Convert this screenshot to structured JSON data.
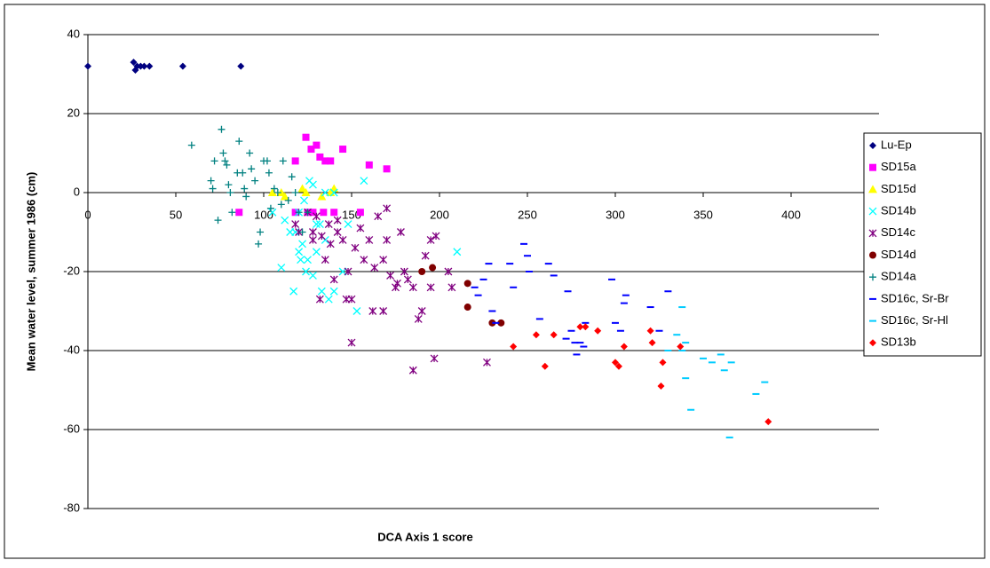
{
  "chart_data": {
    "type": "scatter",
    "xlabel": "DCA Axis 1 score",
    "ylabel": "Mean water level, summer 1986 (cm)",
    "xlim": [
      0,
      450
    ],
    "xticks": [
      0,
      50,
      100,
      150,
      200,
      250,
      300,
      350,
      400
    ],
    "ylim": [
      -80,
      40
    ],
    "yticks": [
      -80,
      -60,
      -40,
      -20,
      0,
      20,
      40
    ],
    "grid": true,
    "legend": "right",
    "series": [
      {
        "name": "Lu-Ep",
        "color": "#000080",
        "marker": "diamond",
        "x": [
          0,
          26,
          27,
          28,
          30,
          32,
          35,
          54,
          87
        ],
        "values": [
          32,
          33,
          31,
          32,
          32,
          32,
          32,
          32,
          32
        ]
      },
      {
        "name": "SD15a",
        "color": "#ff00ff",
        "marker": "square",
        "x": [
          86,
          118,
          118,
          124,
          127,
          125,
          130,
          132,
          134,
          135,
          138,
          145,
          140,
          155,
          160,
          170,
          128
        ],
        "values": [
          -5,
          8,
          -5,
          14,
          11,
          -5,
          12,
          9,
          -5,
          8,
          8,
          11,
          -5,
          -5,
          7,
          6,
          -5
        ]
      },
      {
        "name": "SD15d",
        "color": "#ffff00",
        "marker": "triangle",
        "x": [
          105,
          110,
          122,
          124,
          133,
          138,
          140,
          112
        ],
        "values": [
          0,
          0,
          1,
          0,
          -1,
          0,
          1,
          -1
        ]
      },
      {
        "name": "SD14b",
        "color": "#00ffff",
        "marker": "x",
        "x": [
          105,
          110,
          112,
          117,
          118,
          120,
          121,
          122,
          124,
          125,
          126,
          128,
          130,
          132,
          133,
          135,
          137,
          140,
          145,
          153,
          157,
          210,
          128,
          130,
          135,
          120,
          140,
          115,
          123,
          148
        ],
        "values": [
          -5,
          -19,
          -7,
          -25,
          -10,
          -15,
          -17,
          -13,
          -20,
          -17,
          3,
          -21,
          -15,
          -8,
          -25,
          -12,
          -27,
          -25,
          -20,
          -30,
          3,
          -15,
          2,
          -8,
          0,
          -5,
          0,
          -10,
          -2,
          -8
        ]
      },
      {
        "name": "SD14c",
        "color": "#800080",
        "marker": "asterisk",
        "x": [
          120,
          125,
          128,
          130,
          132,
          135,
          137,
          138,
          140,
          142,
          145,
          148,
          150,
          150,
          155,
          157,
          160,
          162,
          165,
          168,
          168,
          170,
          170,
          175,
          178,
          180,
          185,
          185,
          188,
          190,
          192,
          195,
          195,
          197,
          198,
          205,
          207,
          227,
          128,
          147,
          163,
          172,
          182,
          152,
          176,
          118,
          133,
          142
        ],
        "values": [
          -10,
          -5,
          -12,
          -6,
          -27,
          -17,
          -8,
          -13,
          -22,
          -10,
          -12,
          -20,
          -27,
          -38,
          -9,
          -17,
          -12,
          -30,
          -6,
          -17,
          -30,
          -12,
          -4,
          -24,
          -10,
          -20,
          -24,
          -45,
          -32,
          -30,
          -16,
          -24,
          -12,
          -42,
          -11,
          -20,
          -24,
          -43,
          -10,
          -27,
          -19,
          -21,
          -22,
          -14,
          -23,
          -8,
          -11,
          -7
        ]
      },
      {
        "name": "SD14d",
        "color": "#800000",
        "marker": "circle",
        "x": [
          190,
          196,
          216,
          216,
          230,
          235
        ],
        "values": [
          -20,
          -19,
          -23,
          -29,
          -33,
          -33
        ]
      },
      {
        "name": "SD14a",
        "color": "#008080",
        "marker": "plus",
        "x": [
          59,
          70,
          71,
          72,
          74,
          76,
          77,
          78,
          79,
          80,
          81,
          82,
          85,
          86,
          88,
          89,
          90,
          92,
          93,
          95,
          97,
          98,
          100,
          102,
          103,
          104,
          106,
          108,
          110,
          111,
          114,
          116,
          118,
          120,
          122,
          125
        ],
        "values": [
          12,
          3,
          1,
          8,
          -7,
          16,
          10,
          8,
          7,
          2,
          0,
          -5,
          5,
          13,
          5,
          1,
          -1,
          10,
          6,
          3,
          -13,
          -10,
          8,
          8,
          5,
          -4,
          1,
          0,
          -3,
          8,
          -2,
          4,
          0,
          -5,
          -10,
          -5
        ]
      },
      {
        "name": "SD16c, Sr-Br",
        "color": "#0000ff",
        "marker": "dash",
        "x": [
          220,
          222,
          225,
          228,
          230,
          232,
          240,
          242,
          248,
          250,
          251,
          257,
          262,
          265,
          272,
          273,
          275,
          277,
          278,
          280,
          282,
          283,
          298,
          300,
          303,
          305,
          306,
          320,
          325,
          330
        ],
        "values": [
          -24,
          -26,
          -22,
          -18,
          -30,
          -33,
          -18,
          -24,
          -13,
          -16,
          -20,
          -32,
          -18,
          -21,
          -37,
          -25,
          -35,
          -38,
          -41,
          -38,
          -39,
          -33,
          -22,
          -33,
          -35,
          -28,
          -26,
          -29,
          -35,
          -25
        ]
      },
      {
        "name": "SD16c, Sr-Hl",
        "color": "#00ccff",
        "marker": "dash",
        "x": [
          330,
          335,
          338,
          338,
          340,
          343,
          350,
          355,
          360,
          362,
          365,
          366,
          380,
          385,
          340
        ],
        "values": [
          -40,
          -36,
          -29,
          -40,
          -47,
          -55,
          -42,
          -43,
          -41,
          -45,
          -62,
          -43,
          -51,
          -48,
          -38
        ]
      },
      {
        "name": "SD13b",
        "color": "#ff0000",
        "marker": "diamond",
        "x": [
          242,
          255,
          260,
          265,
          280,
          283,
          290,
          300,
          302,
          305,
          320,
          321,
          327,
          326,
          337,
          387
        ],
        "values": [
          -39,
          -36,
          -44,
          -36,
          -34,
          -34,
          -35,
          -43,
          -44,
          -39,
          -35,
          -38,
          -43,
          -49,
          -39,
          -58
        ]
      }
    ]
  }
}
